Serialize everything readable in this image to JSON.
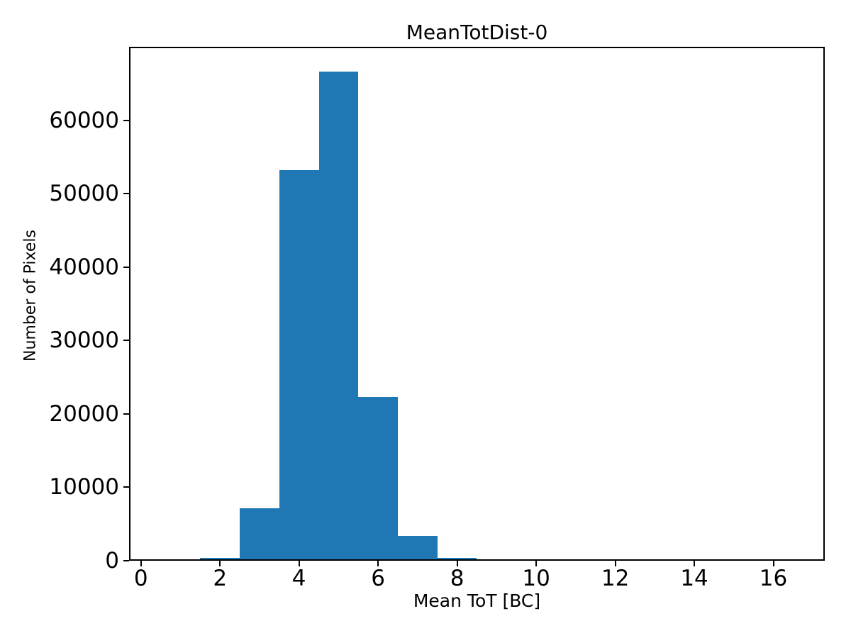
{
  "chart_data": {
    "type": "bar",
    "subtype": "histogram",
    "title": "MeanTotDist-0",
    "xlabel": "Mean ToT [BC]",
    "ylabel": "Number of Pixels",
    "bar_color": "#1f77b4",
    "text_color": "#000000",
    "background_color": "#ffffff",
    "bin_edges": [
      1.5,
      2.5,
      3.5,
      4.5,
      5.5,
      6.5,
      7.5,
      8.5,
      9.5
    ],
    "counts": [
      400,
      7100,
      53200,
      66600,
      22300,
      3400,
      400,
      120
    ],
    "xlim": [
      -0.3,
      17.3
    ],
    "ylim": [
      0,
      70000
    ],
    "x_ticks": [
      0,
      2,
      4,
      6,
      8,
      10,
      12,
      14,
      16
    ],
    "x_tick_labels": [
      "0",
      "2",
      "4",
      "6",
      "8",
      "10",
      "12",
      "14",
      "16"
    ],
    "y_ticks": [
      0,
      10000,
      20000,
      30000,
      40000,
      50000,
      60000
    ],
    "y_tick_labels": [
      "0",
      "10000",
      "20000",
      "30000",
      "40000",
      "50000",
      "60000"
    ],
    "grid": false,
    "legend_position": "none"
  }
}
